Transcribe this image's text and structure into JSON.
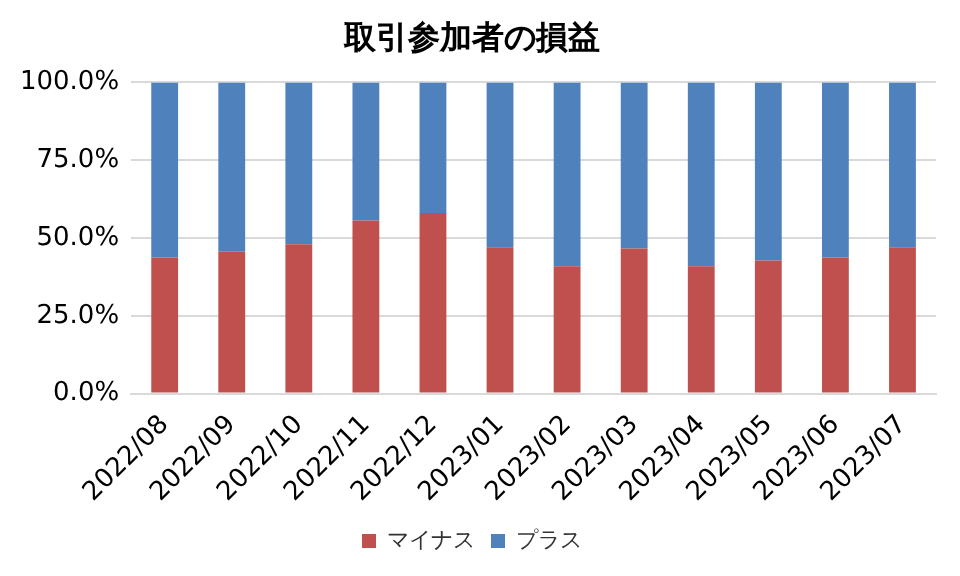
{
  "chart_data": {
    "type": "bar",
    "title": "取引参加者の損益",
    "stacked": true,
    "categories": [
      "2022/08",
      "2022/09",
      "2022/10",
      "2022/11",
      "2022/12",
      "2023/01",
      "2023/02",
      "2023/03",
      "2023/04",
      "2023/05",
      "2023/06",
      "2023/07"
    ],
    "series": [
      {
        "name": "マイナス",
        "color": "#c0504d",
        "values": [
          43.7,
          45.6,
          48.0,
          55.6,
          58.0,
          47.0,
          40.9,
          46.6,
          40.9,
          42.8,
          43.7,
          47.0
        ]
      },
      {
        "name": "プラス",
        "color": "#4f81bd",
        "values": [
          56.3,
          54.4,
          52.0,
          44.4,
          42.0,
          53.0,
          59.1,
          53.4,
          59.1,
          57.2,
          56.3,
          53.0
        ]
      }
    ],
    "ylim": [
      0,
      100
    ],
    "yticks": [
      {
        "value": 0,
        "label": "0.0%"
      },
      {
        "value": 25,
        "label": "25.0%"
      },
      {
        "value": 50,
        "label": "50.0%"
      },
      {
        "value": 75,
        "label": "75.0%"
      },
      {
        "value": 100,
        "label": "100.0%"
      }
    ],
    "grid": "y",
    "legend": "bottom"
  }
}
